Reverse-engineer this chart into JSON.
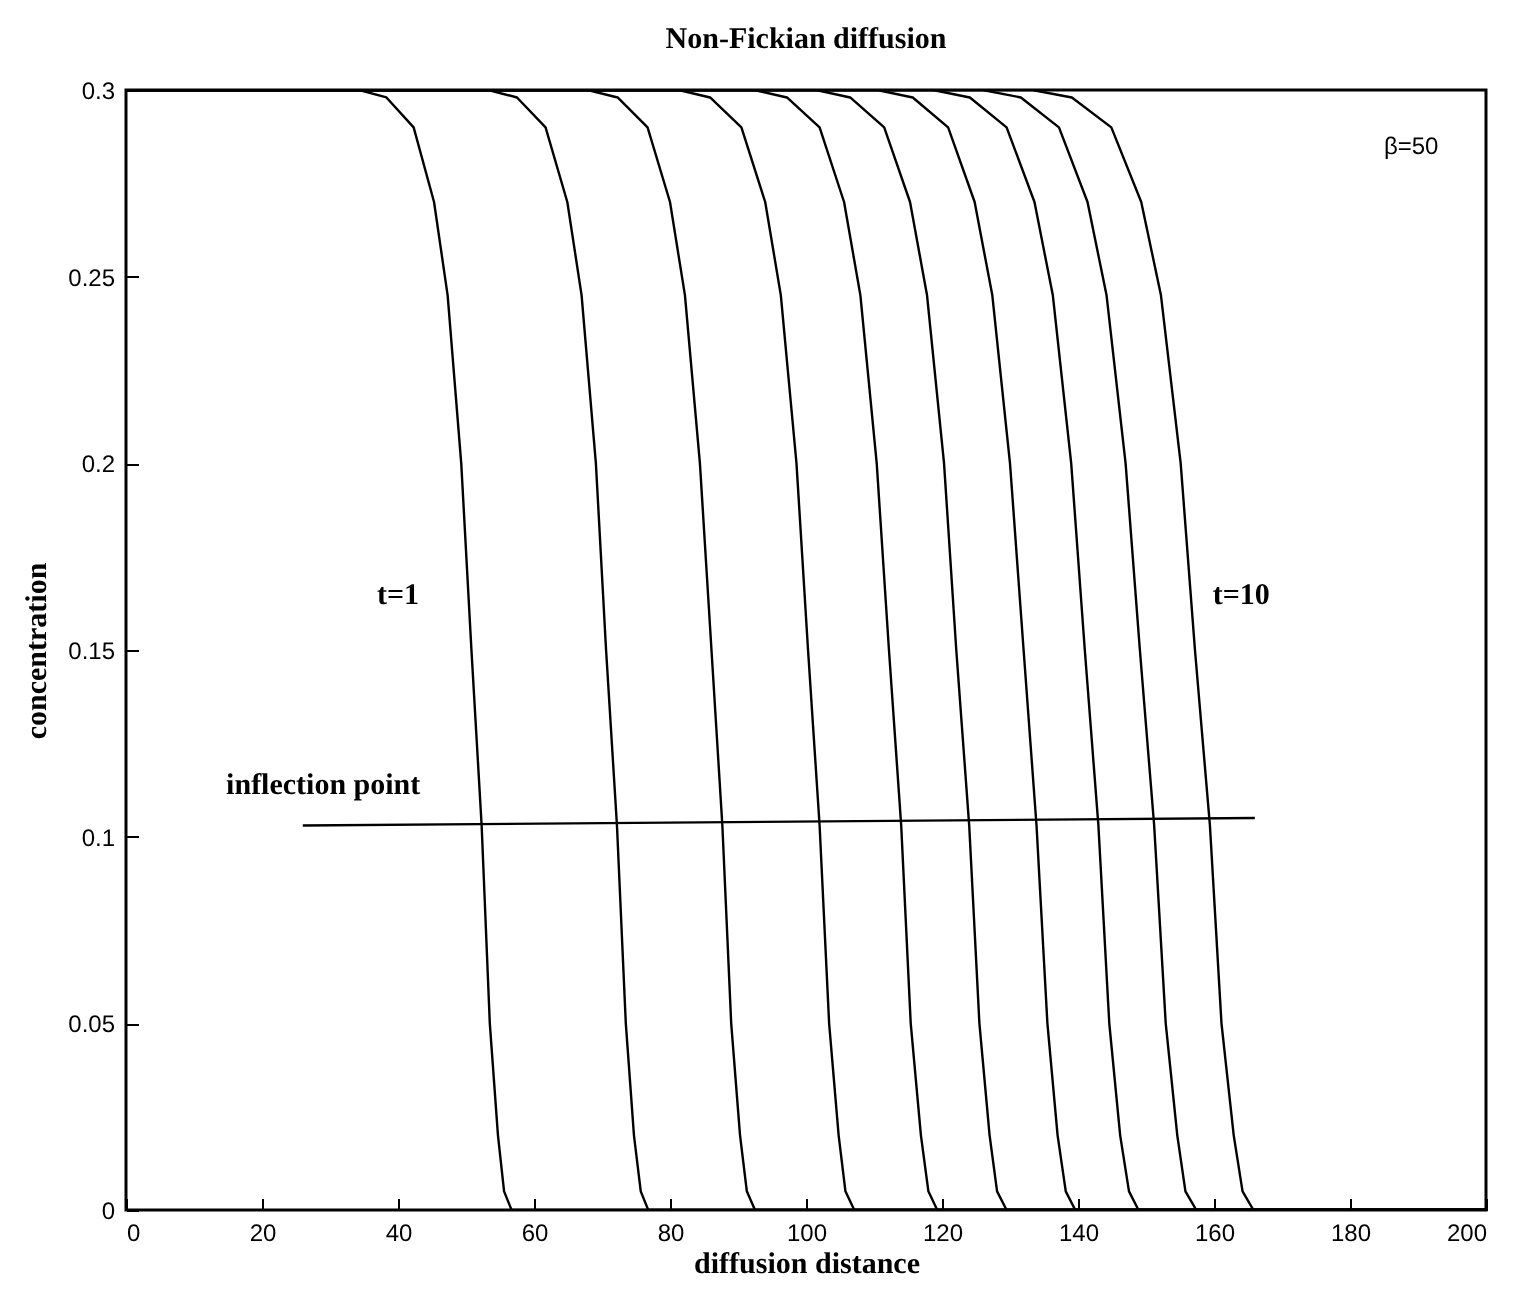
{
  "chart_data": {
    "type": "line",
    "title": "Non-Fickian diffusion",
    "xlabel": "diffusion distance",
    "ylabel": "concentration",
    "xlim": [
      0,
      200
    ],
    "ylim": [
      0,
      0.3
    ],
    "xticks": [
      0,
      20,
      40,
      60,
      80,
      100,
      120,
      140,
      160,
      180,
      200
    ],
    "yticks": [
      0,
      0.05,
      0.1,
      0.15,
      0.2,
      0.25,
      0.3
    ],
    "grid": false,
    "marker": "none",
    "line_style": "solid",
    "annotations": [
      "t=1",
      "t=10",
      "inflection point",
      "β=50"
    ],
    "series": [
      {
        "color": "#000000",
        "x": [
          0,
          34.3,
          38.3,
          42.3,
          45.3,
          47.3,
          49.3,
          50.8,
          52.3,
          53.5,
          54.7,
          55.6,
          56.7,
          200
        ],
        "values": [
          0.3,
          0.3,
          0.298,
          0.29,
          0.27,
          0.245,
          0.2,
          0.15,
          0.103,
          0.05,
          0.02,
          0.005,
          0,
          0
        ]
      },
      {
        "color": "#000000",
        "x": [
          0,
          53.3,
          57.5,
          61.7,
          64.9,
          67.0,
          69.1,
          70.6,
          72.2,
          73.5,
          74.7,
          75.7,
          76.8,
          200
        ],
        "values": [
          0.3,
          0.3,
          0.298,
          0.29,
          0.27,
          0.245,
          0.2,
          0.15,
          0.103,
          0.05,
          0.02,
          0.005,
          0,
          0
        ]
      },
      {
        "color": "#000000",
        "x": [
          0,
          67.9,
          72.3,
          76.7,
          80.0,
          82.2,
          84.4,
          86.1,
          87.7,
          89.0,
          90.3,
          91.3,
          92.5,
          200
        ],
        "values": [
          0.3,
          0.3,
          0.298,
          0.29,
          0.27,
          0.245,
          0.2,
          0.15,
          0.103,
          0.05,
          0.02,
          0.005,
          0,
          0
        ]
      },
      {
        "color": "#000000",
        "x": [
          0,
          81.3,
          85.9,
          90.5,
          94.0,
          96.3,
          98.6,
          100.3,
          102.0,
          103.4,
          104.8,
          105.8,
          107.1,
          200
        ],
        "values": [
          0.3,
          0.3,
          0.298,
          0.29,
          0.27,
          0.245,
          0.2,
          0.15,
          0.103,
          0.05,
          0.02,
          0.005,
          0,
          0
        ]
      },
      {
        "color": "#000000",
        "x": [
          0,
          92.4,
          97.2,
          102.0,
          105.6,
          108.0,
          110.4,
          112.2,
          114.0,
          115.4,
          116.9,
          118.0,
          119.3,
          200
        ],
        "values": [
          0.3,
          0.3,
          0.298,
          0.29,
          0.27,
          0.245,
          0.2,
          0.15,
          0.103,
          0.05,
          0.02,
          0.005,
          0,
          0
        ]
      },
      {
        "color": "#000000",
        "x": [
          0,
          101.5,
          106.5,
          111.5,
          115.3,
          117.8,
          120.3,
          122.1,
          124.0,
          125.5,
          127.0,
          128.1,
          129.5,
          200
        ],
        "values": [
          0.3,
          0.3,
          0.298,
          0.29,
          0.27,
          0.245,
          0.2,
          0.15,
          0.103,
          0.05,
          0.02,
          0.005,
          0,
          0
        ]
      },
      {
        "color": "#000000",
        "x": [
          0,
          110.5,
          115.7,
          120.9,
          124.8,
          127.4,
          130.0,
          132.0,
          133.9,
          135.5,
          137.0,
          138.2,
          139.6,
          200
        ],
        "values": [
          0.3,
          0.3,
          0.298,
          0.29,
          0.27,
          0.245,
          0.2,
          0.15,
          0.103,
          0.05,
          0.02,
          0.005,
          0,
          0
        ]
      },
      {
        "color": "#000000",
        "x": [
          0,
          118.7,
          124.1,
          129.5,
          133.6,
          136.3,
          139.0,
          141.0,
          143.0,
          144.6,
          146.2,
          147.5,
          148.9,
          200
        ],
        "values": [
          0.3,
          0.3,
          0.298,
          0.29,
          0.27,
          0.245,
          0.2,
          0.15,
          0.103,
          0.05,
          0.02,
          0.005,
          0,
          0
        ]
      },
      {
        "color": "#000000",
        "x": [
          0,
          126.0,
          131.6,
          137.2,
          141.4,
          144.2,
          147.0,
          149.1,
          151.2,
          152.9,
          154.6,
          155.8,
          157.4,
          200
        ],
        "values": [
          0.3,
          0.3,
          0.298,
          0.29,
          0.27,
          0.245,
          0.2,
          0.15,
          0.103,
          0.05,
          0.02,
          0.005,
          0,
          0
        ]
      },
      {
        "color": "#000000",
        "x": [
          0,
          133.3,
          139.1,
          144.9,
          149.3,
          152.2,
          155.1,
          157.2,
          159.4,
          161.1,
          162.9,
          164.2,
          165.8,
          200
        ],
        "values": [
          0.3,
          0.3,
          0.298,
          0.29,
          0.27,
          0.245,
          0.2,
          0.15,
          0.103,
          0.05,
          0.02,
          0.005,
          0,
          0
        ]
      },
      {
        "type": "line",
        "color": "#000000",
        "x": [
          26,
          166
        ],
        "values": [
          0.103,
          0.105
        ]
      }
    ]
  }
}
